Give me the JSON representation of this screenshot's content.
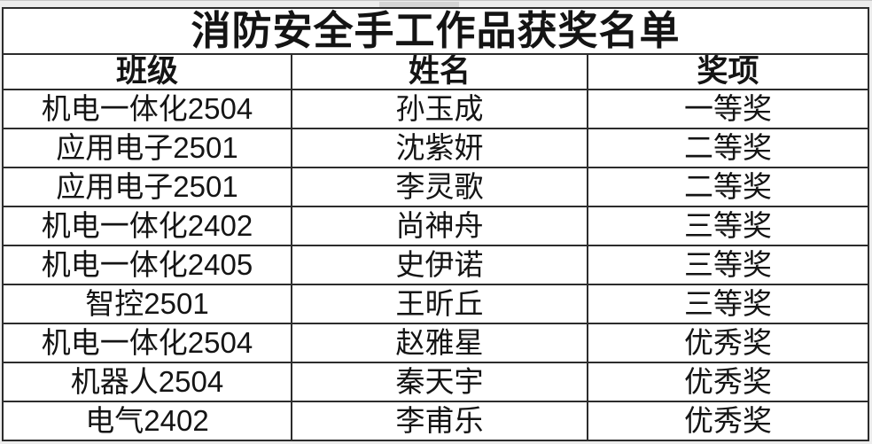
{
  "title": "消防安全手工作品获奖名单",
  "table": {
    "headers": [
      "班级",
      "姓名",
      "奖项"
    ],
    "rows": [
      {
        "class": "机电一体化2504",
        "name": "孙玉成",
        "award": "一等奖"
      },
      {
        "class": "应用电子2501",
        "name": "沈紫妍",
        "award": "二等奖"
      },
      {
        "class": "应用电子2501",
        "name": "李灵歌",
        "award": "二等奖"
      },
      {
        "class": "机电一体化2402",
        "name": "尚神舟",
        "award": "三等奖"
      },
      {
        "class": "机电一体化2405",
        "name": "史伊诺",
        "award": "三等奖"
      },
      {
        "class": "智控2501",
        "name": "王昕丘",
        "award": "三等奖"
      },
      {
        "class": "机电一体化2504",
        "name": "赵雅星",
        "award": "优秀奖"
      },
      {
        "class": "机器人2504",
        "name": "秦天宇",
        "award": "优秀奖"
      },
      {
        "class": "电气2402",
        "name": "李甫乐",
        "award": "优秀奖"
      }
    ]
  },
  "colors": {
    "text": "#141414",
    "border": "#2c2c2c",
    "cell_background": "#ffffff",
    "page_background": "#ececec",
    "notch": "#d4d4d4"
  }
}
